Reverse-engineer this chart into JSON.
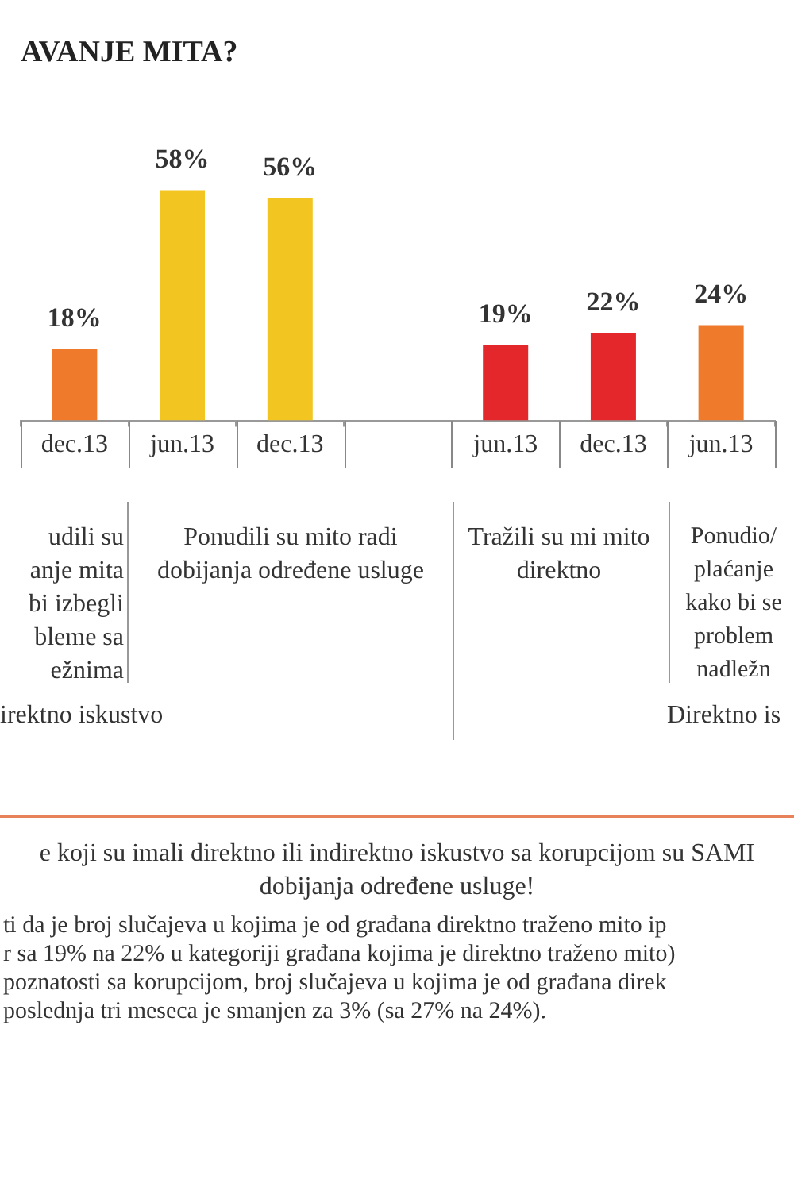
{
  "chart_data": {
    "type": "bar",
    "title": "AVANJE MITA?",
    "categories": [
      "dec.13",
      "jun.13",
      "dec.13",
      null,
      "jun.13",
      "dec.13",
      "jun.13"
    ],
    "values": [
      18,
      58,
      56,
      null,
      19,
      22,
      24
    ],
    "colors": [
      "#ef7a2c",
      "#f3c520",
      "#f3c520",
      "#f3c520",
      "#e3272a",
      "#e3272a",
      "#ef7a2c"
    ],
    "value_labels": [
      "18%",
      "58%",
      "56%",
      null,
      "19%",
      "22%",
      "24%"
    ],
    "legend": false,
    "annotations": [
      "udili  su\nanje mita\nbi izbegli\nbleme sa\nežnima",
      "Ponudili  su mito radi\ndobijanja određene usluge",
      "Tražili su mi mito\ndirektno",
      "Ponudio/\nplaćanje\nkako bi se\nproblem\nnadležn",
      "irektno iskustvo",
      "Direktno is",
      "e koji su imali direktno ili indirektno iskustvo sa korupcijom su SAMI\ndobijanja određene usluge!",
      "ti da je broj slučajeva u kojima je od građana direktno traženo mito ip\nr sa 19% na 22% u kategoriji građana kojima je direktno traženo mito)\npoznatosti sa korupcijom, broj slučajeva u kojima je od građana direk\nposlednja tri meseca je smanjen za 3% (sa 27% na 24%)."
    ]
  }
}
